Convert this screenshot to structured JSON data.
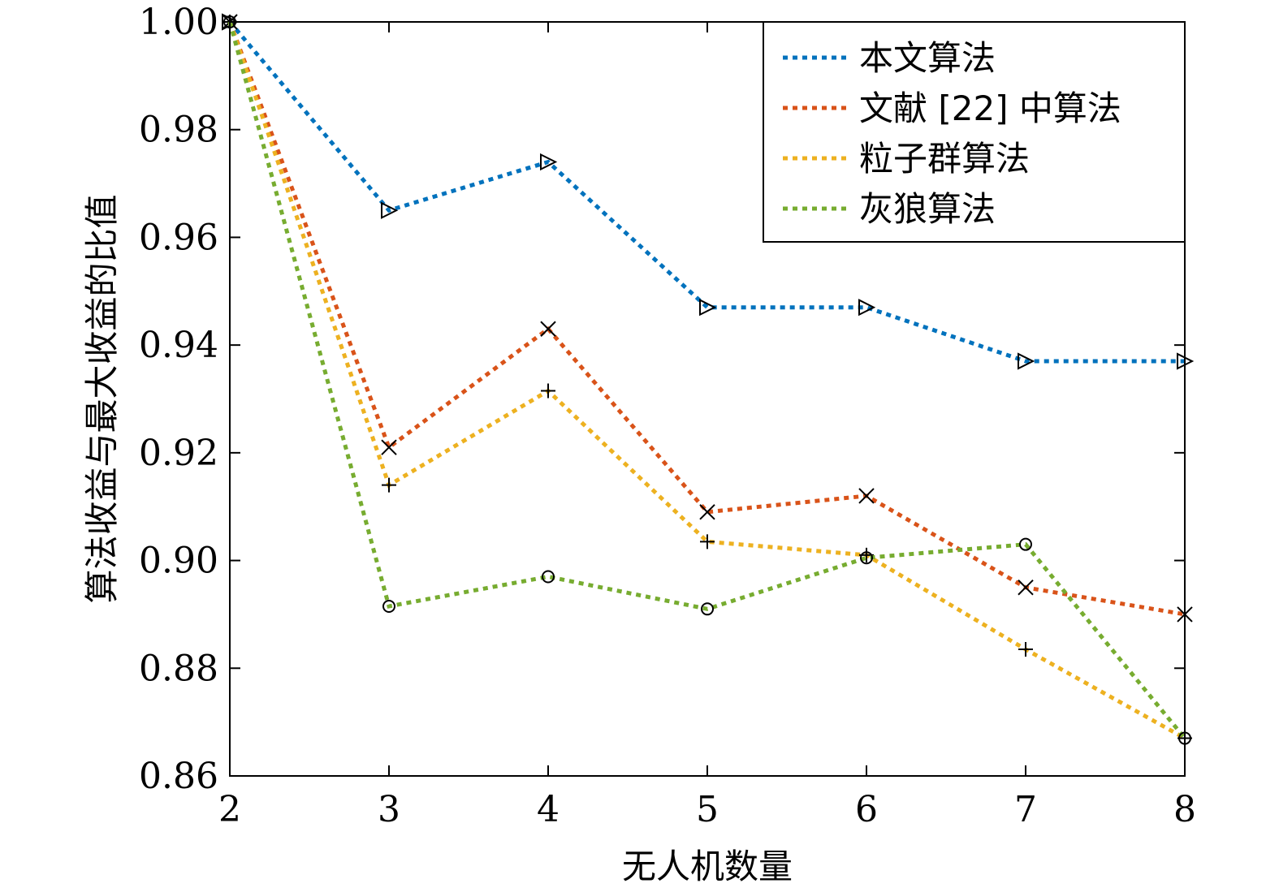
{
  "chart_data": {
    "type": "line",
    "x": [
      2,
      3,
      4,
      5,
      6,
      7,
      8
    ],
    "xlabel": "无人机数量",
    "ylabel": "算法收益与最大收益的比值",
    "xlim": [
      2,
      8
    ],
    "ylim": [
      0.86,
      1.0
    ],
    "xticks": [
      "2",
      "3",
      "4",
      "5",
      "6",
      "7",
      "8"
    ],
    "yticks": [
      "0.86",
      "0.88",
      "0.90",
      "0.92",
      "0.94",
      "0.96",
      "0.98",
      "1.00"
    ],
    "ytick_values": [
      0.86,
      0.88,
      0.9,
      0.92,
      0.94,
      0.96,
      0.98,
      1.0
    ],
    "grid": false,
    "legend_position": "top-right",
    "series": [
      {
        "name": "本文算法",
        "color": "#0072BD",
        "marker": "triangle-right",
        "values": [
          1.0,
          0.965,
          0.974,
          0.947,
          0.947,
          0.937,
          0.937
        ]
      },
      {
        "name": "文献 [22] 中算法",
        "color": "#D95319",
        "marker": "x",
        "values": [
          1.0,
          0.921,
          0.943,
          0.909,
          0.912,
          0.895,
          0.89
        ]
      },
      {
        "name": "粒子群算法",
        "color": "#EDB120",
        "marker": "plus",
        "values": [
          1.0,
          0.914,
          0.9315,
          0.9035,
          0.901,
          0.8835,
          0.867
        ]
      },
      {
        "name": "灰狼算法",
        "color": "#77AC30",
        "marker": "circle",
        "values": [
          1.0,
          0.8915,
          0.897,
          0.891,
          0.9005,
          0.903,
          0.867
        ]
      }
    ]
  }
}
